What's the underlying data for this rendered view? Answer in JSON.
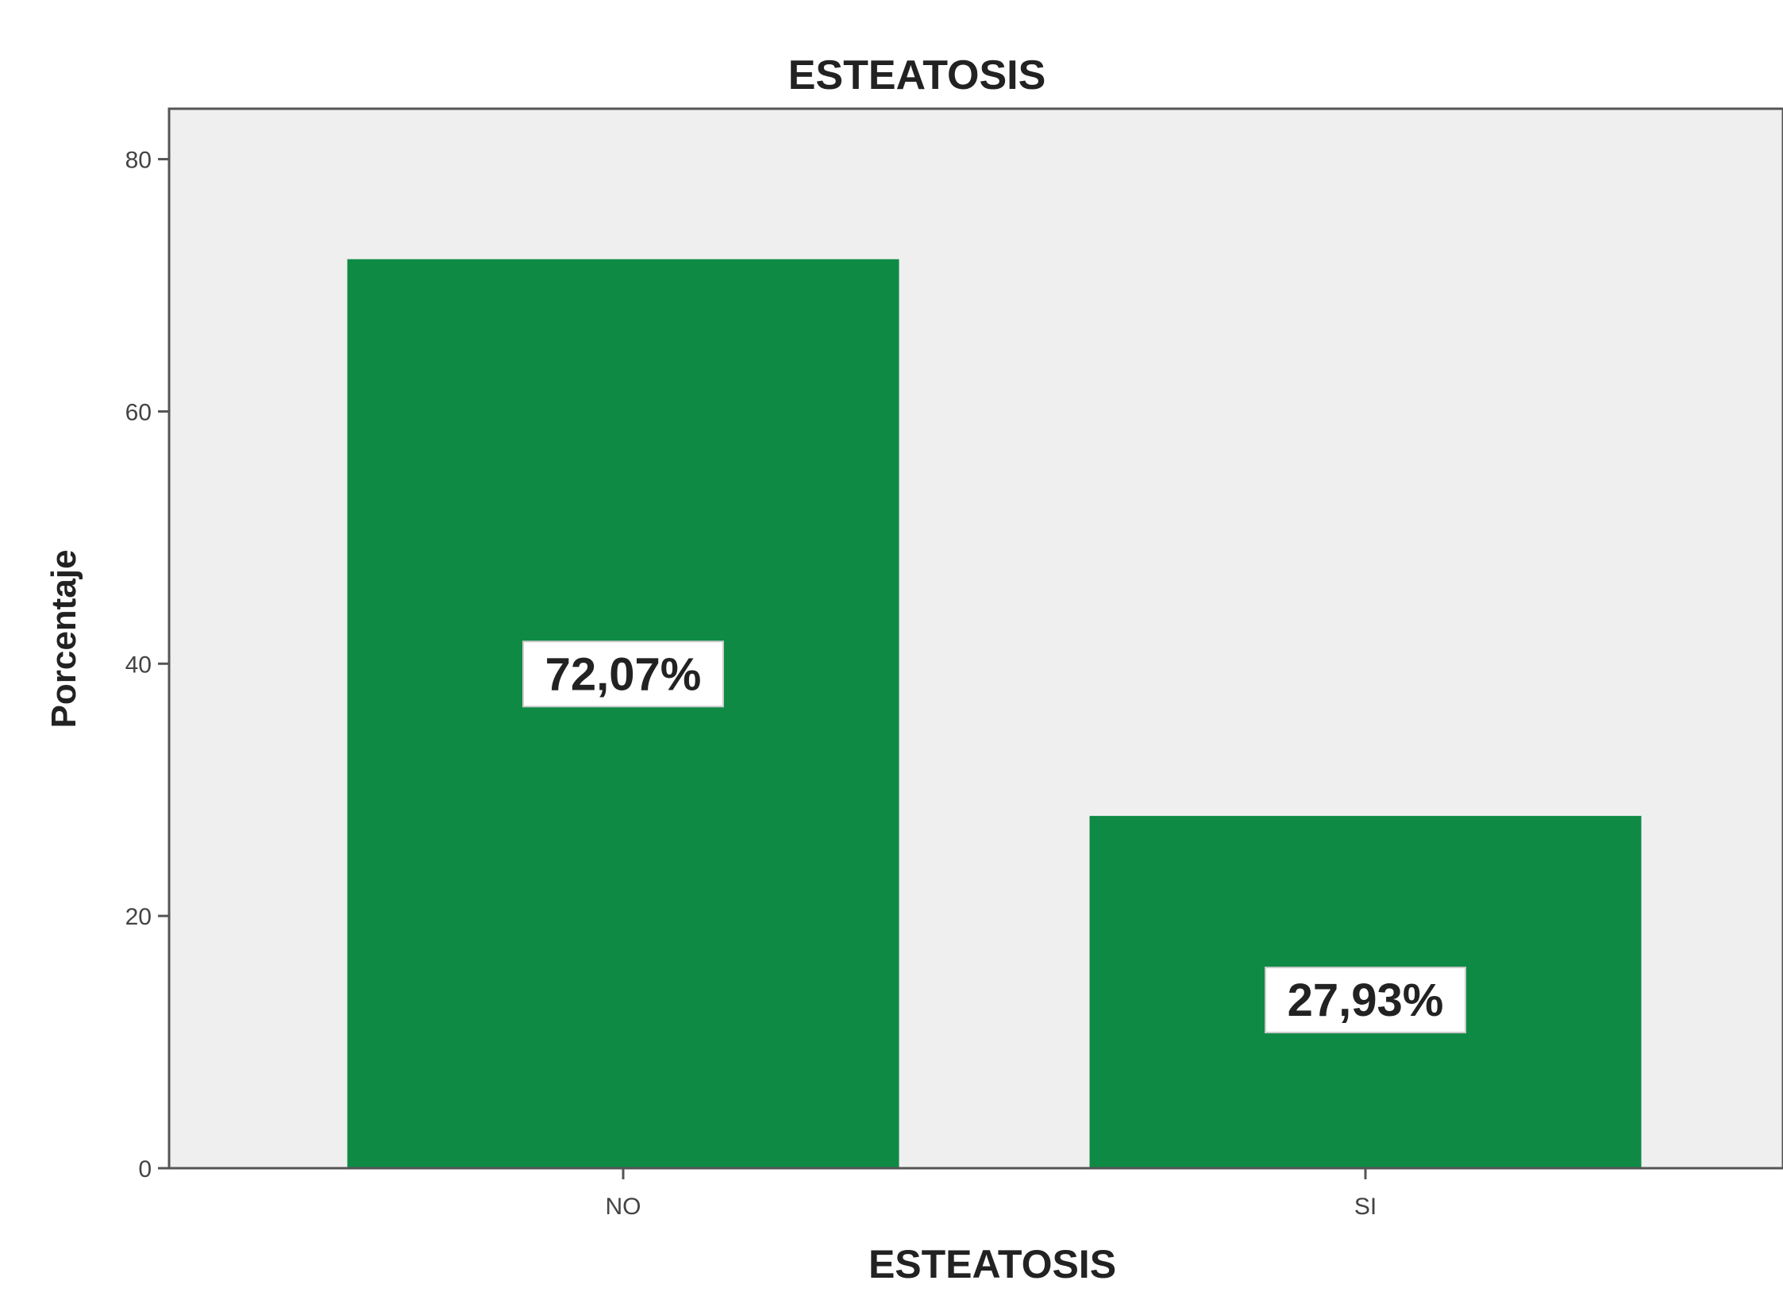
{
  "chart_data": {
    "type": "bar",
    "title": "ESTEATOSIS",
    "xlabel": "ESTEATOSIS",
    "ylabel": "Porcentaje",
    "categories": [
      "NO",
      "SI"
    ],
    "values": [
      72.07,
      27.93
    ],
    "data_labels": [
      "72,07%",
      "27,93%"
    ],
    "yticks": [
      0,
      20,
      40,
      60,
      80
    ],
    "ylim": [
      0,
      84
    ],
    "grid": false,
    "legend": "none",
    "bar_color": "#0e8a45",
    "plot_background": "#efefef",
    "axis_color": "#555555"
  }
}
